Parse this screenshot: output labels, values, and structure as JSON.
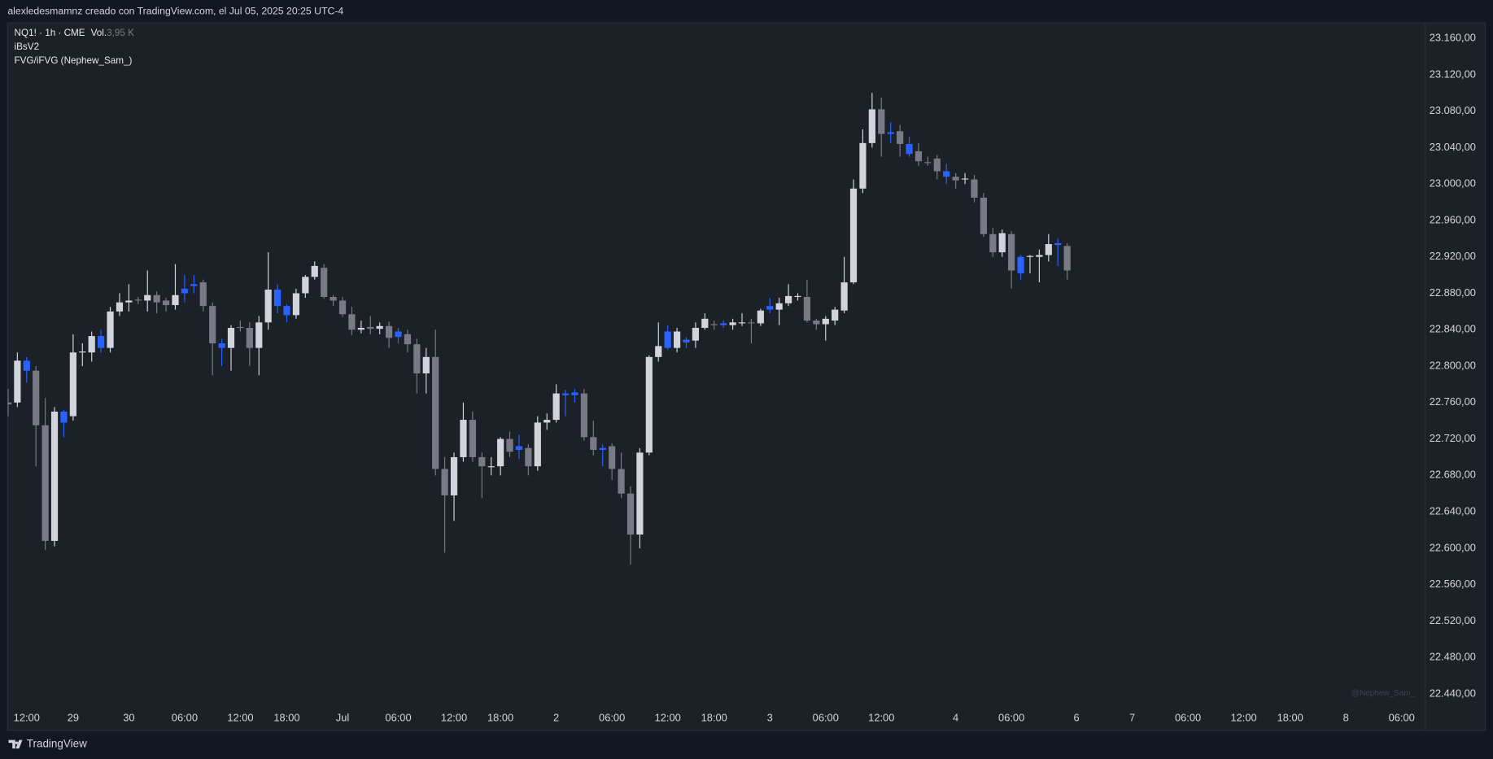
{
  "header": "alexledesmamnz creado con TradingView.com, el Jul 05, 2025 20:25 UTC-4",
  "brand": "TradingView",
  "chart_data": {
    "type": "candlestick",
    "symbol_line": "NQ1! · 1h · CME",
    "volume_label": "Vol.",
    "volume_value": "3,95 K",
    "indicators": [
      "iBsV2",
      "FVG/iFVG (Nephew_Sam_)"
    ],
    "watermark": "@Nephew_Sam_",
    "grid": false,
    "categories": [
      null,
      null,
      "12:00",
      null,
      null,
      null,
      null,
      "29",
      null,
      null,
      null,
      null,
      null,
      "30",
      null,
      null,
      null,
      null,
      null,
      "06:00",
      null,
      null,
      null,
      null,
      null,
      "12:00",
      null,
      null,
      null,
      null,
      "18:00",
      null,
      null,
      null,
      null,
      null,
      "Jul",
      null,
      null,
      null,
      null,
      null,
      "06:00",
      null,
      null,
      null,
      null,
      null,
      "12:00",
      null,
      null,
      null,
      null,
      "18:00",
      null,
      null,
      null,
      null,
      null,
      "2",
      null,
      null,
      null,
      null,
      null,
      "06:00",
      null,
      null,
      null,
      null,
      null,
      "12:00",
      null,
      null,
      null,
      null,
      "18:00",
      null,
      null,
      null,
      null,
      null,
      "3",
      null,
      null,
      null,
      null,
      null,
      "06:00",
      null,
      null,
      null,
      null,
      null,
      "12:00",
      null,
      null,
      null,
      null,
      null,
      null,
      null,
      "4",
      null,
      null,
      null,
      null,
      null,
      "06:00",
      null,
      null,
      null,
      null,
      null,
      null,
      "6",
      null,
      null,
      null,
      null,
      null,
      "7",
      null,
      null,
      null,
      null,
      null,
      "06:00",
      null,
      null,
      null,
      null,
      null,
      "12:00",
      null,
      null,
      null,
      null,
      "18:00",
      null,
      null,
      null,
      null,
      null,
      "8",
      null,
      null,
      null,
      null,
      null,
      "06:00",
      null,
      null
    ],
    "open": [
      22760,
      22760,
      22806,
      22795,
      22735,
      22608,
      22750,
      22745,
      22815,
      22815,
      22833,
      22820,
      22860,
      22870,
      22873,
      22872,
      22878,
      22872,
      22867,
      22885,
      22890,
      22892,
      22866,
      22825,
      22820,
      22843,
      22842,
      22820,
      22848,
      22884,
      22866,
      22856,
      22880,
      22898,
      22908,
      22876,
      22872,
      22857,
      22840,
      22843,
      22841,
      22844,
      22838,
      22835,
      22824,
      22792,
      22810,
      22687,
      22658,
      22700,
      22741,
      22700,
      22690,
      22690,
      22720,
      22712,
      22710,
      22690,
      22738,
      22741,
      22770,
      22771,
      22770,
      22722,
      22710,
      22712,
      22687,
      22660,
      22615,
      22705,
      22810,
      22838,
      22820,
      22829,
      22828,
      22842,
      22846,
      22847,
      22845,
      22848,
      22848,
      22847,
      22866,
      22862,
      22869,
      22877,
      22876,
      22850,
      22846,
      22850,
      22861,
      22892,
      22995,
      23045,
      23082,
      23057,
      23058,
      23044,
      23036,
      23024,
      23028,
      23014,
      23008,
      23006,
      23005,
      22985,
      22945,
      22925,
      22945,
      22920,
      22920,
      22920,
      22922,
      22935,
      22932,
      null,
      null,
      null,
      null,
      null,
      null,
      null,
      null,
      null,
      null,
      null,
      null,
      null,
      null,
      null,
      null,
      null,
      null,
      null,
      null,
      null,
      null,
      null,
      null,
      null,
      null,
      null,
      null,
      null,
      null,
      null,
      null,
      null,
      null,
      null,
      null,
      null,
      null
    ],
    "high": [
      22775,
      22815,
      22810,
      22800,
      22765,
      22755,
      22752,
      22835,
      22825,
      22838,
      22840,
      22865,
      22880,
      22890,
      22876,
      22905,
      22882,
      22875,
      22912,
      22900,
      22900,
      22895,
      22870,
      22830,
      22845,
      22850,
      22848,
      22855,
      22925,
      22890,
      22868,
      22885,
      22900,
      22915,
      22912,
      22878,
      22876,
      22865,
      22850,
      22855,
      22848,
      22849,
      22842,
      22840,
      22830,
      22820,
      22840,
      22700,
      22705,
      22760,
      22750,
      22705,
      22700,
      22722,
      22728,
      22725,
      22714,
      22745,
      22748,
      22780,
      22774,
      22775,
      22775,
      22740,
      22714,
      22715,
      22705,
      22668,
      22710,
      22812,
      22848,
      22845,
      22842,
      22832,
      22848,
      22858,
      22850,
      22850,
      22852,
      22858,
      22852,
      22863,
      22875,
      22875,
      22890,
      22880,
      22895,
      22852,
      22855,
      22865,
      22920,
      23005,
      23060,
      23100,
      23095,
      23068,
      23065,
      23052,
      23045,
      23030,
      23032,
      23022,
      23012,
      23012,
      23010,
      22990,
      22952,
      22950,
      22948,
      22922,
      22922,
      22928,
      22945,
      22940,
      22935,
      null,
      null,
      null,
      null,
      null,
      null,
      null,
      null,
      null,
      null,
      null,
      null,
      null,
      null,
      null,
      null,
      null,
      null,
      null,
      null,
      null,
      null,
      null,
      null,
      null,
      null,
      null,
      null,
      null,
      null,
      null,
      null,
      null,
      null,
      null,
      null,
      null,
      null
    ],
    "low": [
      22745,
      22755,
      22782,
      22690,
      22598,
      22602,
      22722,
      22740,
      22800,
      22805,
      22815,
      22815,
      22855,
      22860,
      22868,
      22860,
      22858,
      22860,
      22862,
      22870,
      22880,
      22860,
      22790,
      22800,
      22795,
      22838,
      22800,
      22790,
      22840,
      22858,
      22848,
      22852,
      22875,
      22895,
      22874,
      22866,
      22854,
      22834,
      22836,
      22835,
      22835,
      22820,
      22825,
      22815,
      22770,
      22770,
      22680,
      22595,
      22630,
      22695,
      22695,
      22655,
      22680,
      22680,
      22700,
      22698,
      22680,
      22685,
      22730,
      22738,
      22745,
      22760,
      22718,
      22702,
      22690,
      22675,
      22655,
      22582,
      22600,
      22702,
      22805,
      22818,
      22815,
      22820,
      22820,
      22840,
      22840,
      22842,
      22840,
      22844,
      22825,
      22844,
      22858,
      22845,
      22866,
      22872,
      22848,
      22840,
      22828,
      22845,
      22858,
      22890,
      22990,
      23040,
      23030,
      23045,
      23030,
      23030,
      23020,
      23020,
      23005,
      23000,
      22995,
      23000,
      22980,
      22942,
      22920,
      22920,
      22885,
      22895,
      22902,
      22892,
      22915,
      22910,
      22895,
      null,
      null,
      null,
      null,
      null,
      null,
      null,
      null,
      null,
      null,
      null,
      null,
      null,
      null,
      null,
      null,
      null,
      null,
      null,
      null,
      null,
      null,
      null,
      null,
      null,
      null,
      null,
      null,
      null,
      null,
      null,
      null,
      null,
      null,
      null,
      null,
      null,
      null
    ],
    "close": [
      22758,
      22806,
      22795,
      22735,
      22608,
      22750,
      22738,
      22815,
      22816,
      22833,
      22820,
      22860,
      22870,
      22872,
      22872,
      22878,
      22870,
      22867,
      22878,
      22880,
      22888,
      22866,
      22825,
      22820,
      22842,
      22842,
      22820,
      22848,
      22884,
      22866,
      22856,
      22880,
      22898,
      22910,
      22876,
      22872,
      22857,
      22840,
      22842,
      22841,
      22844,
      22831,
      22832,
      22824,
      22792,
      22810,
      22687,
      22658,
      22700,
      22741,
      22700,
      22690,
      22690,
      22720,
      22706,
      22708,
      22690,
      22738,
      22741,
      22770,
      22768,
      22768,
      22722,
      22708,
      22708,
      22687,
      22660,
      22615,
      22705,
      22810,
      22822,
      22820,
      22838,
      22826,
      22842,
      22852,
      22845,
      22845,
      22848,
      22848,
      22847,
      22861,
      22862,
      22869,
      22877,
      22877,
      22850,
      22846,
      22852,
      22862,
      22892,
      22995,
      23045,
      23082,
      23055,
      23055,
      23044,
      23033,
      23025,
      23023,
      23014,
      23008,
      23004,
      23006,
      22985,
      22945,
      22925,
      22946,
      22905,
      22902,
      22921,
      22922,
      22934,
      22933,
      22905,
      null,
      null,
      null,
      null,
      null,
      null,
      null,
      null,
      null,
      null,
      null,
      null,
      null,
      null,
      null,
      null,
      null,
      null,
      null,
      null,
      null,
      null,
      null,
      null,
      null,
      null,
      null,
      null,
      null,
      null,
      null,
      null,
      null,
      null,
      null,
      null,
      null,
      null
    ],
    "colors": [
      "#787b86",
      "#d1d4dc",
      "#2962ff",
      "#787b86",
      "#787b86",
      "#d1d4dc",
      "#2962ff",
      "#d1d4dc",
      "#d1d4dc",
      "#d1d4dc",
      "#2962ff",
      "#d1d4dc",
      "#d1d4dc",
      "#d1d4dc",
      "#787b86",
      "#d1d4dc",
      "#787b86",
      "#787b86",
      "#d1d4dc",
      "#2962ff",
      "#2962ff",
      "#787b86",
      "#787b86",
      "#2962ff",
      "#d1d4dc",
      "#787b86",
      "#787b86",
      "#d1d4dc",
      "#d1d4dc",
      "#2962ff",
      "#2962ff",
      "#d1d4dc",
      "#d1d4dc",
      "#d1d4dc",
      "#787b86",
      "#787b86",
      "#787b86",
      "#787b86",
      "#d1d4dc",
      "#787b86",
      "#d1d4dc",
      "#787b86",
      "#2962ff",
      "#787b86",
      "#787b86",
      "#d1d4dc",
      "#787b86",
      "#787b86",
      "#d1d4dc",
      "#d1d4dc",
      "#787b86",
      "#787b86",
      "#d1d4dc",
      "#d1d4dc",
      "#787b86",
      "#2962ff",
      "#787b86",
      "#d1d4dc",
      "#d1d4dc",
      "#d1d4dc",
      "#2962ff",
      "#2962ff",
      "#787b86",
      "#787b86",
      "#2962ff",
      "#787b86",
      "#787b86",
      "#787b86",
      "#d1d4dc",
      "#d1d4dc",
      "#d1d4dc",
      "#2962ff",
      "#d1d4dc",
      "#2962ff",
      "#d1d4dc",
      "#d1d4dc",
      "#787b86",
      "#2962ff",
      "#d1d4dc",
      "#d1d4dc",
      "#787b86",
      "#d1d4dc",
      "#2962ff",
      "#d1d4dc",
      "#d1d4dc",
      "#d1d4dc",
      "#787b86",
      "#787b86",
      "#d1d4dc",
      "#d1d4dc",
      "#d1d4dc",
      "#d1d4dc",
      "#d1d4dc",
      "#d1d4dc",
      "#787b86",
      "#2962ff",
      "#787b86",
      "#2962ff",
      "#787b86",
      "#787b86",
      "#787b86",
      "#2962ff",
      "#787b86",
      "#d1d4dc",
      "#787b86",
      "#787b86",
      "#787b86",
      "#d1d4dc",
      "#787b86",
      "#2962ff",
      "#d1d4dc",
      "#d1d4dc",
      "#d1d4dc",
      "#2962ff",
      "#787b86",
      null,
      null,
      null,
      null,
      null,
      null,
      null,
      null,
      null,
      null,
      null,
      null,
      null,
      null,
      null,
      null,
      null,
      null,
      null,
      null,
      null,
      null,
      null,
      null,
      null,
      null,
      null,
      null,
      null,
      null,
      null,
      null,
      null,
      null,
      null,
      null,
      null,
      null
    ],
    "ylim": [
      22426,
      23177
    ],
    "yticks": [
      {
        "value": 23160,
        "label": "23.160,00"
      },
      {
        "value": 23120,
        "label": "23.120,00"
      },
      {
        "value": 23080,
        "label": "23.080,00"
      },
      {
        "value": 23040,
        "label": "23.040,00"
      },
      {
        "value": 23000,
        "label": "23.000,00"
      },
      {
        "value": 22960,
        "label": "22.960,00"
      },
      {
        "value": 22920,
        "label": "22.920,00"
      },
      {
        "value": 22880,
        "label": "22.880,00"
      },
      {
        "value": 22840,
        "label": "22.840,00"
      },
      {
        "value": 22800,
        "label": "22.800,00"
      },
      {
        "value": 22760,
        "label": "22.760,00"
      },
      {
        "value": 22720,
        "label": "22.720,00"
      },
      {
        "value": 22680,
        "label": "22.680,00"
      },
      {
        "value": 22640,
        "label": "22.640,00"
      },
      {
        "value": 22600,
        "label": "22.600,00"
      },
      {
        "value": 22560,
        "label": "22.560,00"
      },
      {
        "value": 22520,
        "label": "22.520,00"
      },
      {
        "value": 22480,
        "label": "22.480,00"
      },
      {
        "value": 22440,
        "label": "22.440,00"
      }
    ]
  }
}
